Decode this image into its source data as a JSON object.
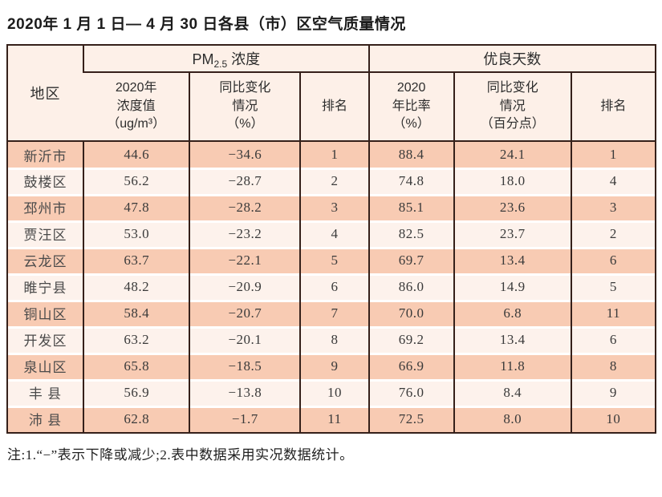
{
  "page": {
    "title": "2020年 1 月 1 日— 4 月 30 日各县（市）区空气质量情况",
    "note": "注:1.“−”表示下降或减少;2.表中数据采用实况数据统计。"
  },
  "colors": {
    "grid_line": "#35201a",
    "row_salmon": "#f8cbb3",
    "row_light": "#fdf2ec",
    "header_bg": "#fdf0e8"
  },
  "table": {
    "region_header": "地区",
    "group_pm25": {
      "prefix": "PM",
      "sub": "2.5",
      "suffix": " 浓度"
    },
    "group_good_days": "优良天数",
    "subheaders": {
      "pm_value": "2020年\n浓度值\n（ug/m³）",
      "pm_change": "同比变化\n情况\n（%）",
      "pm_rank": "排名",
      "good_rate": "2020\n年比率\n（%）",
      "good_change": "同比变化\n情况\n（百分点）",
      "good_rank": "排名"
    },
    "rows": [
      {
        "region": "新沂市",
        "pm_value": "44.6",
        "pm_change": "−34.6",
        "pm_rank": "1",
        "good_rate": "88.4",
        "good_change": "24.1",
        "good_rank": "1"
      },
      {
        "region": "鼓楼区",
        "pm_value": "56.2",
        "pm_change": "−28.7",
        "pm_rank": "2",
        "good_rate": "74.8",
        "good_change": "18.0",
        "good_rank": "4"
      },
      {
        "region": "邳州市",
        "pm_value": "47.8",
        "pm_change": "−28.2",
        "pm_rank": "3",
        "good_rate": "85.1",
        "good_change": "23.6",
        "good_rank": "3"
      },
      {
        "region": "贾汪区",
        "pm_value": "53.0",
        "pm_change": "−23.2",
        "pm_rank": "4",
        "good_rate": "82.5",
        "good_change": "23.7",
        "good_rank": "2"
      },
      {
        "region": "云龙区",
        "pm_value": "63.7",
        "pm_change": "−22.1",
        "pm_rank": "5",
        "good_rate": "69.7",
        "good_change": "13.4",
        "good_rank": "6"
      },
      {
        "region": "睢宁县",
        "pm_value": "48.2",
        "pm_change": "−20.9",
        "pm_rank": "6",
        "good_rate": "86.0",
        "good_change": "14.9",
        "good_rank": "5"
      },
      {
        "region": "铜山区",
        "pm_value": "58.4",
        "pm_change": "−20.7",
        "pm_rank": "7",
        "good_rate": "70.0",
        "good_change": "6.8",
        "good_rank": "11"
      },
      {
        "region": "开发区",
        "pm_value": "63.2",
        "pm_change": "−20.1",
        "pm_rank": "8",
        "good_rate": "69.2",
        "good_change": "13.4",
        "good_rank": "6"
      },
      {
        "region": "泉山区",
        "pm_value": "65.8",
        "pm_change": "−18.5",
        "pm_rank": "9",
        "good_rate": "66.9",
        "good_change": "11.8",
        "good_rank": "8"
      },
      {
        "region": "丰 县",
        "pm_value": "56.9",
        "pm_change": "−13.8",
        "pm_rank": "10",
        "good_rate": "76.0",
        "good_change": "8.4",
        "good_rank": "9"
      },
      {
        "region": "沛 县",
        "pm_value": "62.8",
        "pm_change": "−1.7",
        "pm_rank": "11",
        "good_rate": "72.5",
        "good_change": "8.0",
        "good_rank": "10"
      }
    ]
  }
}
